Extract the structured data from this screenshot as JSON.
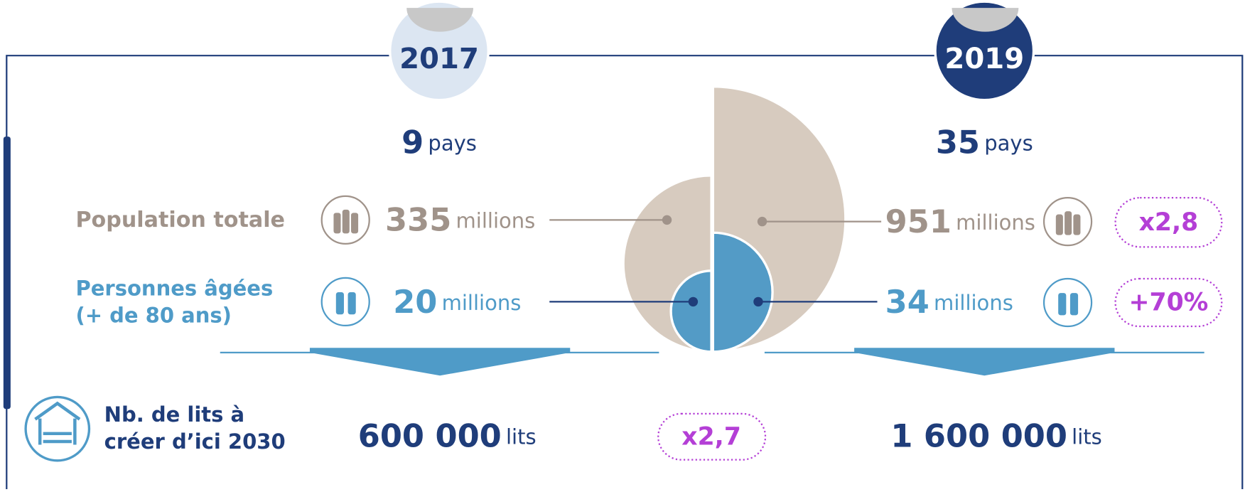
{
  "years": {
    "left": "2017",
    "right": "2019"
  },
  "countries": {
    "left": {
      "number": "9",
      "unit": "pays"
    },
    "right": {
      "number": "35",
      "unit": "pays"
    }
  },
  "population": {
    "label": "Population totale",
    "left": {
      "number": "335",
      "unit": "millions"
    },
    "right": {
      "number": "951",
      "unit": "millions"
    },
    "badge": "x2,8"
  },
  "elderly": {
    "label": [
      "Personnes âgées",
      "(+ de 80 ans)"
    ],
    "left": {
      "number": "20",
      "unit": "millions"
    },
    "right": {
      "number": "34",
      "unit": "millions"
    },
    "badge": "+70%"
  },
  "beds": {
    "label": [
      "Nb. de lits à",
      "créer d’ici 2030"
    ],
    "left": {
      "number": "600 000",
      "unit": "lits"
    },
    "right": {
      "number": "1 600 000",
      "unit": "lits"
    },
    "badge": "x2,7"
  }
}
